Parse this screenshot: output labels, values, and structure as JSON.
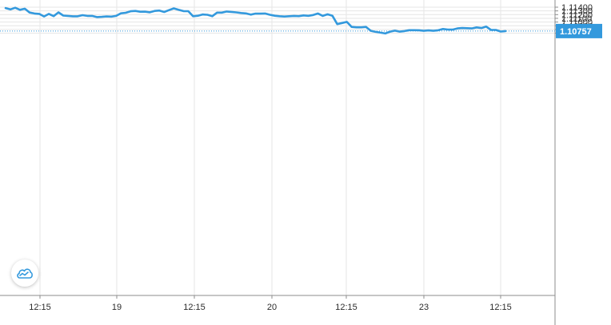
{
  "chart_data": {
    "type": "line",
    "series": [
      {
        "color": "#3399dd",
        "values": [
          1.11377,
          1.1134,
          1.11385,
          1.1133,
          1.1136,
          1.11255,
          1.1123,
          1.1122,
          1.1115,
          1.1122,
          1.1116,
          1.1126,
          1.11175,
          1.11165,
          1.11155,
          1.11155,
          1.11185,
          1.11165,
          1.11165,
          1.11133,
          1.1114,
          1.1115,
          1.11147,
          1.11165,
          1.11235,
          1.1125,
          1.1129,
          1.113,
          1.11277,
          1.1128,
          1.11262,
          1.113,
          1.1131,
          1.1127,
          1.1132,
          1.11367,
          1.1133,
          1.11295,
          1.11292,
          1.11158,
          1.1117,
          1.11205,
          1.11195,
          1.11156,
          1.11253,
          1.11253,
          1.11283,
          1.11274,
          1.1126,
          1.11243,
          1.11232,
          1.112,
          1.11227,
          1.11225,
          1.1123,
          1.11195,
          1.1117,
          1.11157,
          1.11148,
          1.11157,
          1.11165,
          1.1116,
          1.11178,
          1.11168,
          1.1119,
          1.1123,
          1.11165,
          1.11208,
          1.11168,
          1.10945,
          1.10975,
          1.11005,
          1.10868,
          1.10858,
          1.10858,
          1.10868,
          1.10763,
          1.10735,
          1.10715,
          1.10693,
          1.10743,
          1.10768,
          1.10743,
          1.10758,
          1.1078,
          1.1078,
          1.10778,
          1.10763,
          1.10775,
          1.10763,
          1.10778,
          1.10813,
          1.10798,
          1.10795,
          1.10828,
          1.10838,
          1.10835,
          1.10828,
          1.10855,
          1.10838,
          1.10878,
          1.10787,
          1.10787,
          1.10745,
          1.10757
        ]
      }
    ],
    "x_tick_labels": [
      "12:15",
      "19",
      "12:15",
      "20",
      "12:15",
      "23",
      "12:15"
    ],
    "y_tick_labels": [
      "1.11400",
      "1.11300",
      "1.11200",
      "1.11100",
      "1.11000",
      "1.10900",
      "1.10800",
      "1.10700"
    ],
    "y_ticks": [
      1.114,
      1.113,
      1.112,
      1.111,
      1.11,
      1.109,
      1.108,
      1.107
    ],
    "ylim": [
      1.1063,
      1.1142
    ],
    "last_value": 1.10757,
    "last_value_label": "1.10757",
    "grid": true,
    "axis_position": "right",
    "colors": {
      "line": "#3399dd",
      "grid": "#e6e6e6",
      "axis": "#8c8c8c",
      "price_line": "#3399dd",
      "label_bg": "#3399dd"
    }
  },
  "logo": {
    "icon": "tradingview-cloud-icon",
    "color": "#3399dd"
  }
}
